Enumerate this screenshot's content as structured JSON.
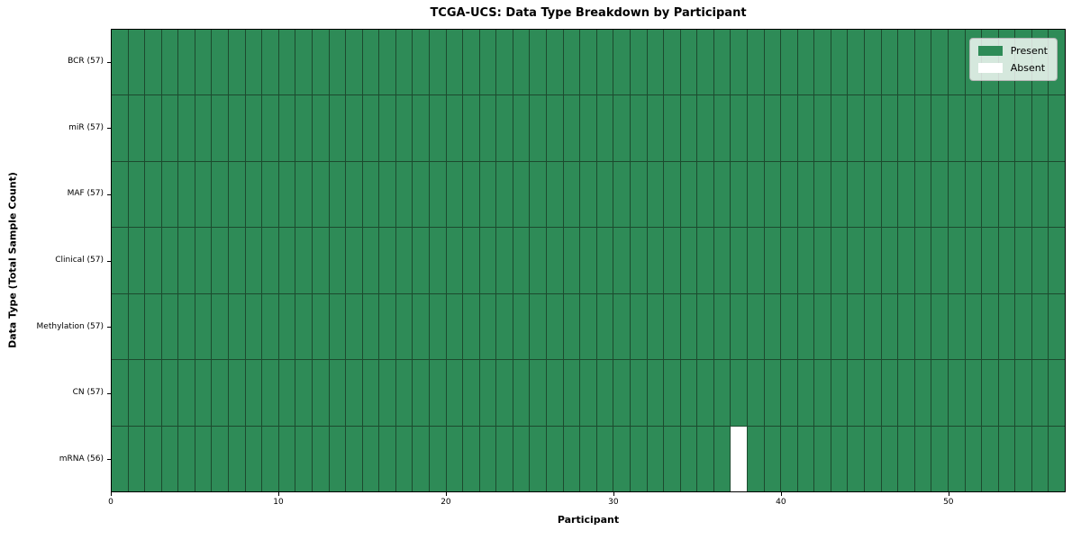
{
  "figure": {
    "title": "TCGA-UCS: Data Type Breakdown by Participant"
  },
  "axes": {
    "x_label": "Participant",
    "y_label": "Data Type (Total Sample Count)"
  },
  "legend": {
    "items": [
      {
        "label": "Present",
        "color": "#2e8b57"
      },
      {
        "label": "Absent",
        "color": "#ffffff"
      }
    ]
  },
  "chart_data": {
    "type": "heatmap",
    "title": "TCGA-UCS: Data Type Breakdown by Participant",
    "xlabel": "Participant",
    "ylabel": "Data Type (Total Sample Count)",
    "n_participants": 57,
    "x_range": [
      0,
      57
    ],
    "x_tick_values": [
      0,
      10,
      20,
      30,
      40,
      50
    ],
    "legend_position": "upper right",
    "grid": "cell-borders",
    "rows": [
      {
        "label": "BCR (57)",
        "data_type": "BCR",
        "present_count": 57,
        "absent_participants": []
      },
      {
        "label": "miR (57)",
        "data_type": "miR",
        "present_count": 57,
        "absent_participants": []
      },
      {
        "label": "MAF (57)",
        "data_type": "MAF",
        "present_count": 57,
        "absent_participants": []
      },
      {
        "label": "Clinical (57)",
        "data_type": "Clinical",
        "present_count": 57,
        "absent_participants": []
      },
      {
        "label": "Methylation (57)",
        "data_type": "Methylation",
        "present_count": 57,
        "absent_participants": []
      },
      {
        "label": "CN (57)",
        "data_type": "CN",
        "present_count": 57,
        "absent_participants": []
      },
      {
        "label": "mRNA (56)",
        "data_type": "mRNA",
        "present_count": 56,
        "absent_participants": [
          37
        ]
      }
    ],
    "colors": {
      "present": "#2e8b57",
      "absent": "#ffffff",
      "cell_border": "#1c4a2e",
      "spine": "#000000"
    }
  }
}
